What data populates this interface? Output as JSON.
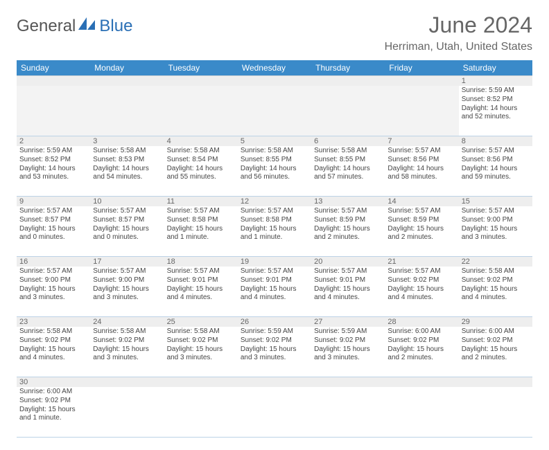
{
  "brand": {
    "general": "General",
    "blue": "Blue"
  },
  "title": "June 2024",
  "location": "Herriman, Utah, United States",
  "day_headers": [
    "Sunday",
    "Monday",
    "Tuesday",
    "Wednesday",
    "Thursday",
    "Friday",
    "Saturday"
  ],
  "colors": {
    "header_bg": "#3a8ac9",
    "header_text": "#ffffff",
    "rule": "#bcd2e6",
    "daynum_bg": "#eeeeee",
    "logo_blue": "#2a6fb5"
  },
  "weeks": [
    [
      null,
      null,
      null,
      null,
      null,
      null,
      {
        "n": "1",
        "sunrise": "Sunrise: 5:59 AM",
        "sunset": "Sunset: 8:52 PM",
        "daylight": "Daylight: 14 hours and 52 minutes."
      }
    ],
    [
      {
        "n": "2",
        "sunrise": "Sunrise: 5:59 AM",
        "sunset": "Sunset: 8:52 PM",
        "daylight": "Daylight: 14 hours and 53 minutes."
      },
      {
        "n": "3",
        "sunrise": "Sunrise: 5:58 AM",
        "sunset": "Sunset: 8:53 PM",
        "daylight": "Daylight: 14 hours and 54 minutes."
      },
      {
        "n": "4",
        "sunrise": "Sunrise: 5:58 AM",
        "sunset": "Sunset: 8:54 PM",
        "daylight": "Daylight: 14 hours and 55 minutes."
      },
      {
        "n": "5",
        "sunrise": "Sunrise: 5:58 AM",
        "sunset": "Sunset: 8:55 PM",
        "daylight": "Daylight: 14 hours and 56 minutes."
      },
      {
        "n": "6",
        "sunrise": "Sunrise: 5:58 AM",
        "sunset": "Sunset: 8:55 PM",
        "daylight": "Daylight: 14 hours and 57 minutes."
      },
      {
        "n": "7",
        "sunrise": "Sunrise: 5:57 AM",
        "sunset": "Sunset: 8:56 PM",
        "daylight": "Daylight: 14 hours and 58 minutes."
      },
      {
        "n": "8",
        "sunrise": "Sunrise: 5:57 AM",
        "sunset": "Sunset: 8:56 PM",
        "daylight": "Daylight: 14 hours and 59 minutes."
      }
    ],
    [
      {
        "n": "9",
        "sunrise": "Sunrise: 5:57 AM",
        "sunset": "Sunset: 8:57 PM",
        "daylight": "Daylight: 15 hours and 0 minutes."
      },
      {
        "n": "10",
        "sunrise": "Sunrise: 5:57 AM",
        "sunset": "Sunset: 8:57 PM",
        "daylight": "Daylight: 15 hours and 0 minutes."
      },
      {
        "n": "11",
        "sunrise": "Sunrise: 5:57 AM",
        "sunset": "Sunset: 8:58 PM",
        "daylight": "Daylight: 15 hours and 1 minute."
      },
      {
        "n": "12",
        "sunrise": "Sunrise: 5:57 AM",
        "sunset": "Sunset: 8:58 PM",
        "daylight": "Daylight: 15 hours and 1 minute."
      },
      {
        "n": "13",
        "sunrise": "Sunrise: 5:57 AM",
        "sunset": "Sunset: 8:59 PM",
        "daylight": "Daylight: 15 hours and 2 minutes."
      },
      {
        "n": "14",
        "sunrise": "Sunrise: 5:57 AM",
        "sunset": "Sunset: 8:59 PM",
        "daylight": "Daylight: 15 hours and 2 minutes."
      },
      {
        "n": "15",
        "sunrise": "Sunrise: 5:57 AM",
        "sunset": "Sunset: 9:00 PM",
        "daylight": "Daylight: 15 hours and 3 minutes."
      }
    ],
    [
      {
        "n": "16",
        "sunrise": "Sunrise: 5:57 AM",
        "sunset": "Sunset: 9:00 PM",
        "daylight": "Daylight: 15 hours and 3 minutes."
      },
      {
        "n": "17",
        "sunrise": "Sunrise: 5:57 AM",
        "sunset": "Sunset: 9:00 PM",
        "daylight": "Daylight: 15 hours and 3 minutes."
      },
      {
        "n": "18",
        "sunrise": "Sunrise: 5:57 AM",
        "sunset": "Sunset: 9:01 PM",
        "daylight": "Daylight: 15 hours and 4 minutes."
      },
      {
        "n": "19",
        "sunrise": "Sunrise: 5:57 AM",
        "sunset": "Sunset: 9:01 PM",
        "daylight": "Daylight: 15 hours and 4 minutes."
      },
      {
        "n": "20",
        "sunrise": "Sunrise: 5:57 AM",
        "sunset": "Sunset: 9:01 PM",
        "daylight": "Daylight: 15 hours and 4 minutes."
      },
      {
        "n": "21",
        "sunrise": "Sunrise: 5:57 AM",
        "sunset": "Sunset: 9:02 PM",
        "daylight": "Daylight: 15 hours and 4 minutes."
      },
      {
        "n": "22",
        "sunrise": "Sunrise: 5:58 AM",
        "sunset": "Sunset: 9:02 PM",
        "daylight": "Daylight: 15 hours and 4 minutes."
      }
    ],
    [
      {
        "n": "23",
        "sunrise": "Sunrise: 5:58 AM",
        "sunset": "Sunset: 9:02 PM",
        "daylight": "Daylight: 15 hours and 4 minutes."
      },
      {
        "n": "24",
        "sunrise": "Sunrise: 5:58 AM",
        "sunset": "Sunset: 9:02 PM",
        "daylight": "Daylight: 15 hours and 3 minutes."
      },
      {
        "n": "25",
        "sunrise": "Sunrise: 5:58 AM",
        "sunset": "Sunset: 9:02 PM",
        "daylight": "Daylight: 15 hours and 3 minutes."
      },
      {
        "n": "26",
        "sunrise": "Sunrise: 5:59 AM",
        "sunset": "Sunset: 9:02 PM",
        "daylight": "Daylight: 15 hours and 3 minutes."
      },
      {
        "n": "27",
        "sunrise": "Sunrise: 5:59 AM",
        "sunset": "Sunset: 9:02 PM",
        "daylight": "Daylight: 15 hours and 3 minutes."
      },
      {
        "n": "28",
        "sunrise": "Sunrise: 6:00 AM",
        "sunset": "Sunset: 9:02 PM",
        "daylight": "Daylight: 15 hours and 2 minutes."
      },
      {
        "n": "29",
        "sunrise": "Sunrise: 6:00 AM",
        "sunset": "Sunset: 9:02 PM",
        "daylight": "Daylight: 15 hours and 2 minutes."
      }
    ],
    [
      {
        "n": "30",
        "sunrise": "Sunrise: 6:00 AM",
        "sunset": "Sunset: 9:02 PM",
        "daylight": "Daylight: 15 hours and 1 minute."
      },
      null,
      null,
      null,
      null,
      null,
      null
    ]
  ]
}
